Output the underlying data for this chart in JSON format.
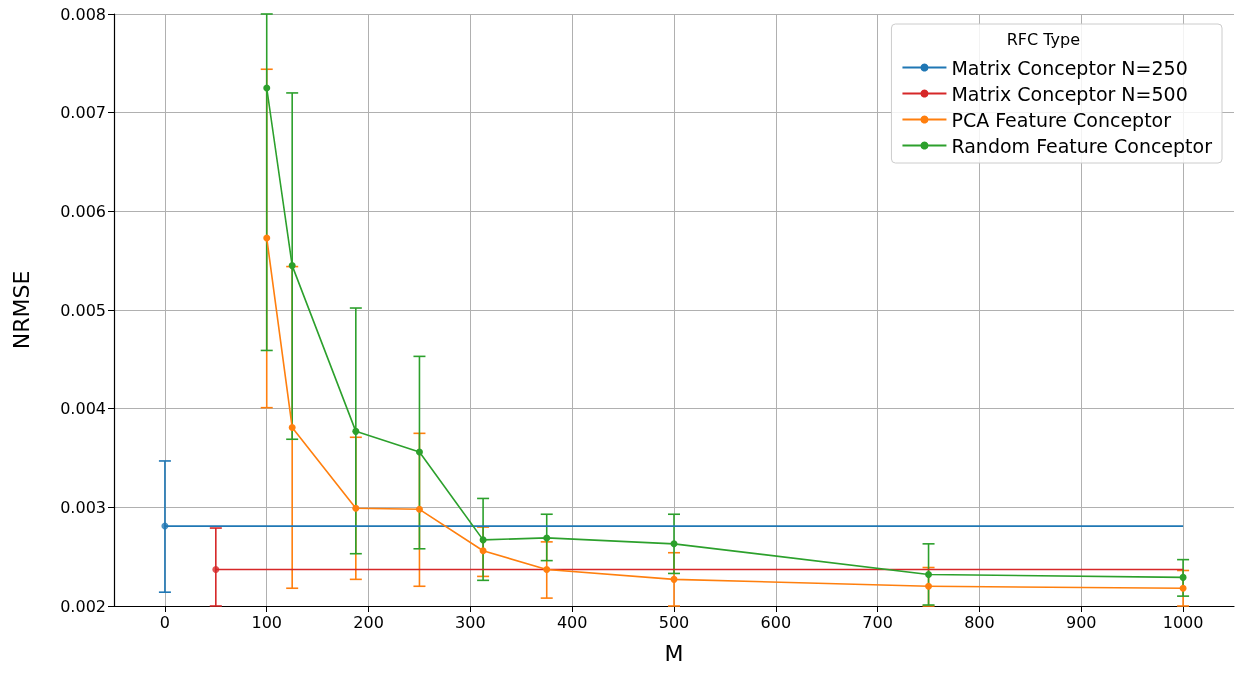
{
  "chart_data": {
    "type": "line",
    "xlabel": "M",
    "ylabel": "NRMSE",
    "legend_title": "RFC Type",
    "xlim": [
      -50,
      1050
    ],
    "xticks": [
      0,
      100,
      200,
      300,
      400,
      500,
      600,
      700,
      800,
      900,
      1000
    ],
    "ylim": [
      0.002,
      0.008
    ],
    "yticks": [
      0.002,
      0.003,
      0.004,
      0.005,
      0.006,
      0.007,
      0.008
    ],
    "grid": true,
    "legend": "top right",
    "series": [
      {
        "name": "Matrix Conceptor N=250",
        "color": "#1f77b4",
        "marker": "none",
        "x": [
          0,
          1000
        ],
        "values": [
          0.00281,
          0.00281
        ]
      },
      {
        "type": "scatter",
        "color": "#1f77b4",
        "marker": "circle",
        "x": [
          0
        ],
        "values": [
          0.00281
        ],
        "errors": [
          [
            0.00214,
            0.00347
          ]
        ]
      },
      {
        "name": "Matrix Conceptor N=500",
        "color": "#d62728",
        "marker": "none",
        "x": [
          50,
          1000
        ],
        "values": [
          0.00237,
          0.00237
        ]
      },
      {
        "type": "scatter",
        "color": "#d62728",
        "marker": "circle",
        "x": [
          50
        ],
        "values": [
          0.00237
        ],
        "errors": [
          [
            0.002,
            0.00279
          ]
        ]
      },
      {
        "name": "PCA Feature Conceptor",
        "color": "#ff7f0e",
        "marker": "circle",
        "x": [
          100,
          125,
          187.5,
          250,
          312.5,
          375,
          500,
          750,
          1000
        ],
        "values": [
          0.00573,
          0.00381,
          0.00299,
          0.00298,
          0.00256,
          0.00237,
          0.00227,
          0.0022,
          0.00218
        ],
        "errors": [
          [
            0.00401,
            0.00744
          ],
          [
            0.00218,
            0.00544
          ],
          [
            0.00227,
            0.00371
          ],
          [
            0.0022,
            0.00375
          ],
          [
            0.0023,
            0.0028
          ],
          [
            0.00208,
            0.00265
          ],
          [
            0.002,
            0.00254
          ],
          [
            0.002,
            0.00239
          ],
          [
            0.002,
            0.00236
          ]
        ]
      },
      {
        "name": "Random Feature Conceptor",
        "color": "#2ca02c",
        "marker": "circle",
        "x": [
          100,
          125,
          187.5,
          250,
          312.5,
          375,
          500,
          750,
          1000
        ],
        "values": [
          0.00725,
          0.00545,
          0.00377,
          0.00356,
          0.00267,
          0.00269,
          0.00263,
          0.00232,
          0.00229
        ],
        "errors": [
          [
            0.00459,
            0.008
          ],
          [
            0.00369,
            0.0072
          ],
          [
            0.00253,
            0.00502
          ],
          [
            0.00258,
            0.00453
          ],
          [
            0.00226,
            0.00309
          ],
          [
            0.00246,
            0.00293
          ],
          [
            0.00233,
            0.00293
          ],
          [
            0.00201,
            0.00263
          ],
          [
            0.0021,
            0.00247
          ]
        ]
      }
    ]
  }
}
